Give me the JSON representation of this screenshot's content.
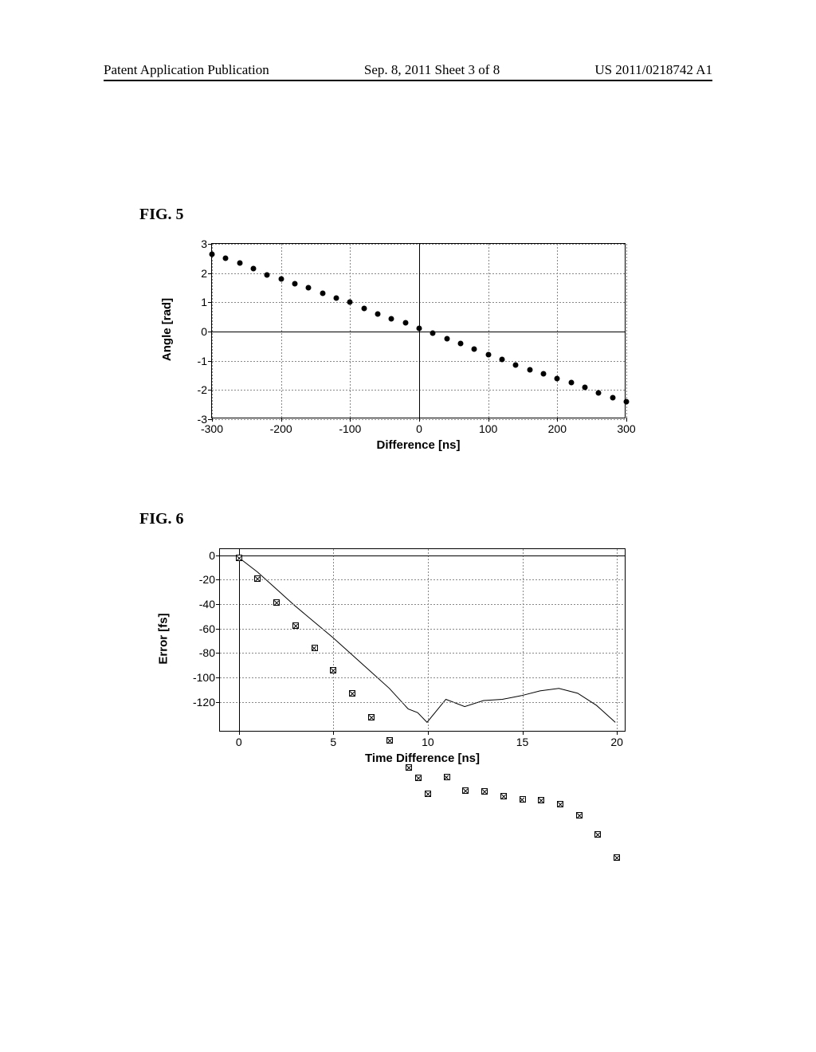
{
  "header": {
    "left": "Patent Application Publication",
    "center": "Sep. 8, 2011  Sheet 3 of 8",
    "right": "US 2011/0218742 A1"
  },
  "fig5": {
    "label": "FIG. 5",
    "type": "scatter",
    "xlabel": "Difference [ns]",
    "ylabel": "Angle [rad]",
    "xlim": [
      -300,
      300
    ],
    "ylim": [
      -3,
      3
    ],
    "xticks": [
      -300,
      -200,
      -100,
      0,
      100,
      200,
      300
    ],
    "yticks": [
      -3,
      -2,
      -1,
      0,
      1,
      2,
      3
    ],
    "grid_color": "#888888",
    "marker_color": "#000000",
    "marker_style": "filled-circle",
    "marker_size": 7,
    "background_color": "#ffffff",
    "axis_color": "#000000",
    "label_fontsize": 15,
    "tick_fontsize": 14,
    "data": [
      {
        "x": -300,
        "y": 2.65
      },
      {
        "x": -280,
        "y": 2.5
      },
      {
        "x": -260,
        "y": 2.35
      },
      {
        "x": -240,
        "y": 2.15
      },
      {
        "x": -220,
        "y": 1.95
      },
      {
        "x": -200,
        "y": 1.8
      },
      {
        "x": -180,
        "y": 1.65
      },
      {
        "x": -160,
        "y": 1.5
      },
      {
        "x": -140,
        "y": 1.3
      },
      {
        "x": -120,
        "y": 1.15
      },
      {
        "x": -100,
        "y": 1.0
      },
      {
        "x": -80,
        "y": 0.8
      },
      {
        "x": -60,
        "y": 0.6
      },
      {
        "x": -40,
        "y": 0.45
      },
      {
        "x": -20,
        "y": 0.3
      },
      {
        "x": 0,
        "y": 0.1
      },
      {
        "x": 20,
        "y": -0.05
      },
      {
        "x": 40,
        "y": -0.25
      },
      {
        "x": 60,
        "y": -0.4
      },
      {
        "x": 80,
        "y": -0.6
      },
      {
        "x": 100,
        "y": -0.8
      },
      {
        "x": 120,
        "y": -0.95
      },
      {
        "x": 140,
        "y": -1.15
      },
      {
        "x": 160,
        "y": -1.3
      },
      {
        "x": 180,
        "y": -1.45
      },
      {
        "x": 200,
        "y": -1.6
      },
      {
        "x": 220,
        "y": -1.75
      },
      {
        "x": 240,
        "y": -1.9
      },
      {
        "x": 260,
        "y": -2.1
      },
      {
        "x": 280,
        "y": -2.25
      },
      {
        "x": 300,
        "y": -2.4
      }
    ]
  },
  "fig6": {
    "label": "FIG. 6",
    "type": "line",
    "xlabel": "Time Difference [ns]",
    "ylabel": "Error [fs]",
    "xlim": [
      -1,
      20.5
    ],
    "ylim": [
      -145,
      5
    ],
    "xticks": [
      0,
      5,
      10,
      15,
      20
    ],
    "yticks": [
      -120,
      -100,
      -80,
      -60,
      -40,
      -20,
      0
    ],
    "grid_color": "#888888",
    "marker_color": "#000000",
    "line_color": "#000000",
    "line_width": 1,
    "marker_style": "open-square-x",
    "marker_size": 8,
    "background_color": "#ffffff",
    "axis_color": "#000000",
    "label_fontsize": 15,
    "tick_fontsize": 14,
    "data": [
      {
        "x": 0,
        "y": -2
      },
      {
        "x": 1,
        "y": -14
      },
      {
        "x": 2,
        "y": -28
      },
      {
        "x": 3,
        "y": -42
      },
      {
        "x": 4,
        "y": -55
      },
      {
        "x": 5,
        "y": -68
      },
      {
        "x": 6,
        "y": -82
      },
      {
        "x": 7,
        "y": -96
      },
      {
        "x": 8,
        "y": -110
      },
      {
        "x": 9,
        "y": -127
      },
      {
        "x": 9.5,
        "y": -130
      },
      {
        "x": 10,
        "y": -138
      },
      {
        "x": 11,
        "y": -119
      },
      {
        "x": 12,
        "y": -125
      },
      {
        "x": 13,
        "y": -120
      },
      {
        "x": 14,
        "y": -119
      },
      {
        "x": 15,
        "y": -116
      },
      {
        "x": 16,
        "y": -112
      },
      {
        "x": 17,
        "y": -110
      },
      {
        "x": 18,
        "y": -114
      },
      {
        "x": 19,
        "y": -124
      },
      {
        "x": 20,
        "y": -138
      }
    ]
  }
}
